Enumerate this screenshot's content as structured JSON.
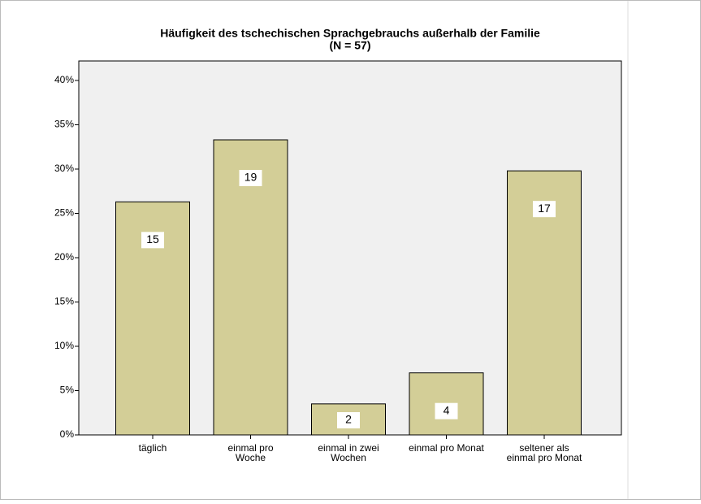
{
  "chart_data": {
    "type": "bar",
    "title": [
      "Häufigkeit des tschechischen Sprachgebrauchs außerhalb der Familie",
      "(N = 57)"
    ],
    "categories": [
      [
        "täglich"
      ],
      [
        "einmal pro",
        "Woche"
      ],
      [
        "einmal in zwei",
        "Wochen"
      ],
      [
        "einmal pro Monat"
      ],
      [
        "seltener als",
        "einmal pro Monat"
      ]
    ],
    "values": [
      26.3,
      33.3,
      3.5,
      7.0,
      29.8
    ],
    "counts": [
      15,
      19,
      2,
      4,
      17
    ],
    "color": "#d3ce97",
    "ylim": [
      0,
      42.2
    ],
    "yticks": [
      {
        "value": 0,
        "label": "0%"
      },
      {
        "value": 5,
        "label": "5%"
      },
      {
        "value": 10,
        "label": "10%"
      },
      {
        "value": 15,
        "label": "15%"
      },
      {
        "value": 20,
        "label": "20%"
      },
      {
        "value": 25,
        "label": "25%"
      },
      {
        "value": 30,
        "label": "30%"
      },
      {
        "value": 35,
        "label": "35%"
      },
      {
        "value": 40,
        "label": "40%"
      }
    ]
  }
}
